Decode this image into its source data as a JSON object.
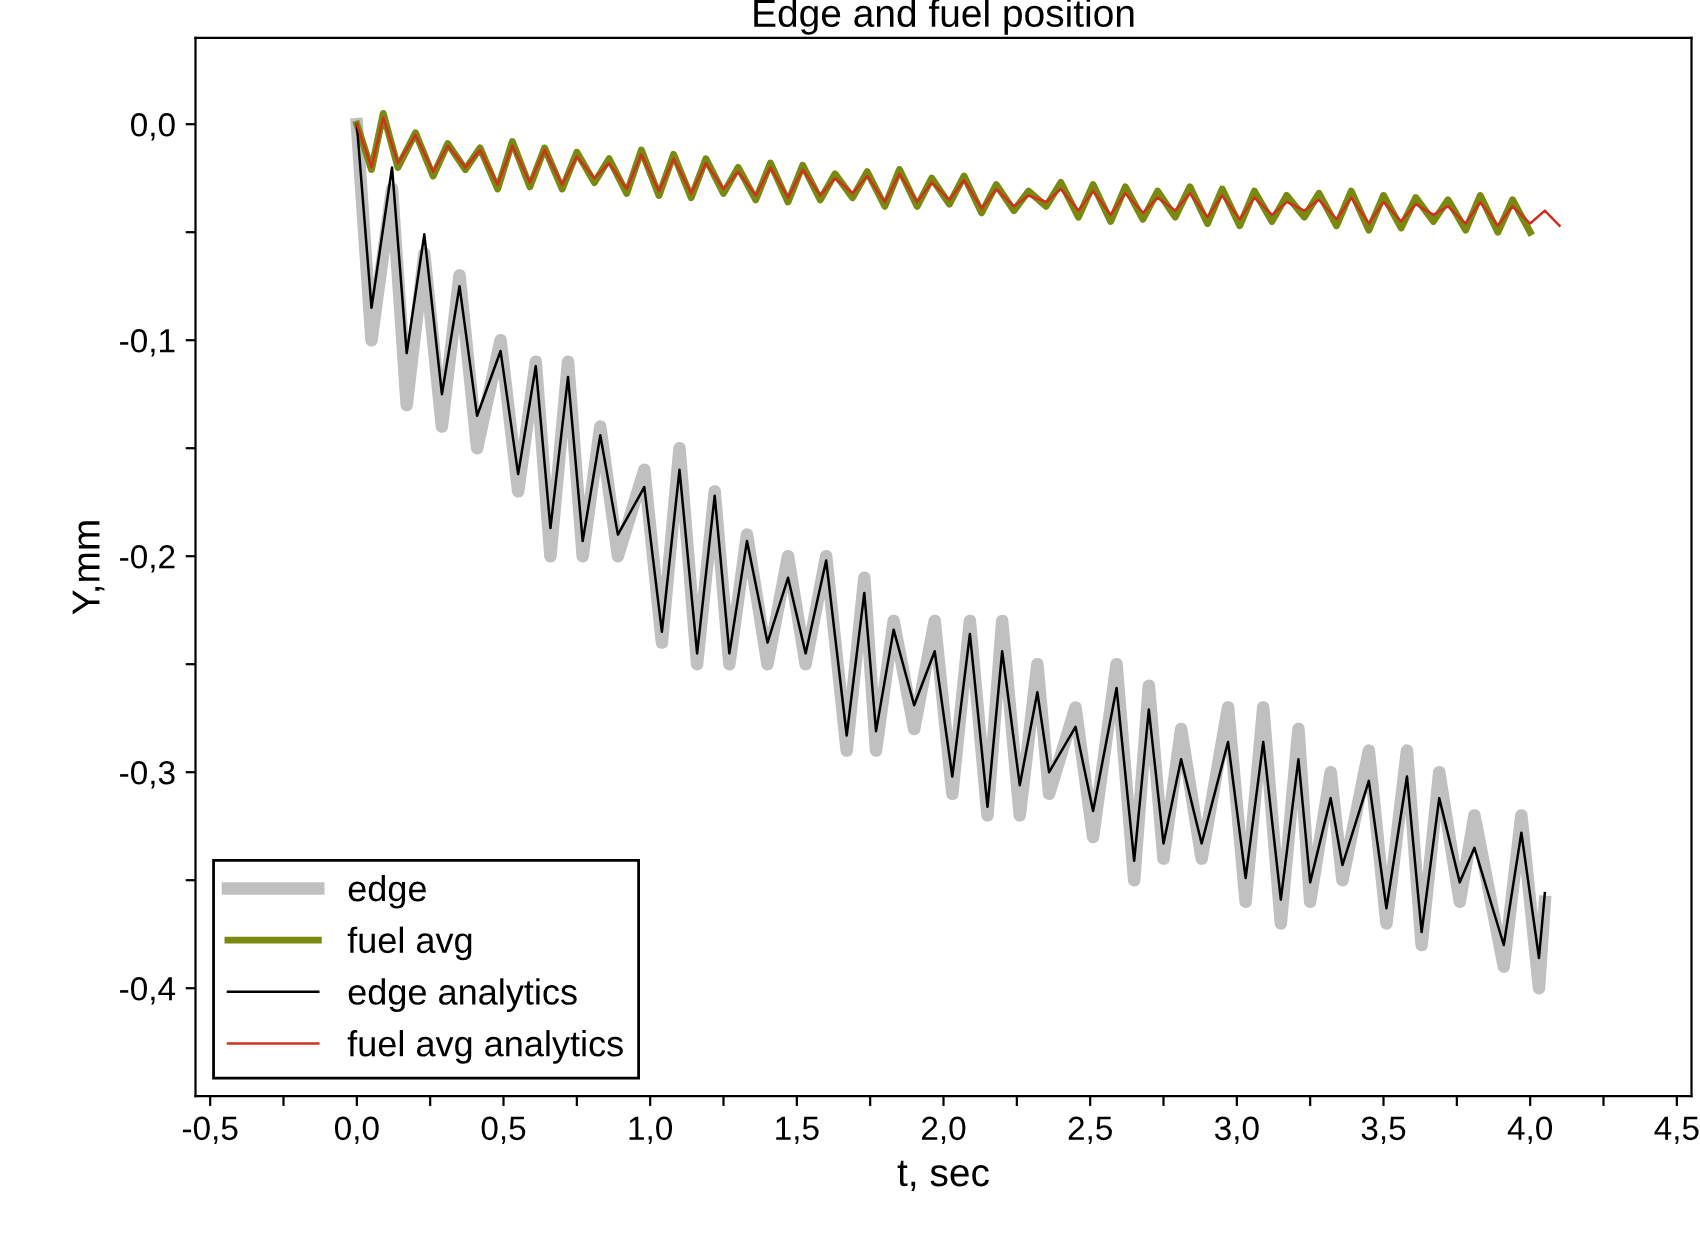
{
  "chart_data": {
    "type": "line",
    "title": "Edge and fuel position",
    "xlabel": "t, sec",
    "ylabel": "Y,mm",
    "xlim": [
      -0.55,
      4.55
    ],
    "ylim": [
      -0.45,
      0.04
    ],
    "xticks": [
      {
        "value": -0.5,
        "label": "-0,5"
      },
      {
        "value": -0.25,
        "label": null
      },
      {
        "value": 0,
        "label": "0,0"
      },
      {
        "value": 0.25,
        "label": null
      },
      {
        "value": 0.5,
        "label": "0,5"
      },
      {
        "value": 0.75,
        "label": null
      },
      {
        "value": 1,
        "label": "1,0"
      },
      {
        "value": 1.25,
        "label": null
      },
      {
        "value": 1.5,
        "label": "1,5"
      },
      {
        "value": 1.75,
        "label": null
      },
      {
        "value": 2,
        "label": "2,0"
      },
      {
        "value": 2.25,
        "label": null
      },
      {
        "value": 2.5,
        "label": "2,5"
      },
      {
        "value": 2.75,
        "label": null
      },
      {
        "value": 3,
        "label": "3,0"
      },
      {
        "value": 3.25,
        "label": null
      },
      {
        "value": 3.5,
        "label": "3,5"
      },
      {
        "value": 3.75,
        "label": null
      },
      {
        "value": 4,
        "label": "4,0"
      },
      {
        "value": 4.25,
        "label": null
      },
      {
        "value": 4.5,
        "label": "4,5"
      }
    ],
    "yticks": [
      {
        "value": 0,
        "label": "0,0"
      },
      {
        "value": -0.05,
        "label": null
      },
      {
        "value": -0.1,
        "label": "-0,1"
      },
      {
        "value": -0.15,
        "label": null
      },
      {
        "value": -0.2,
        "label": "-0,2"
      },
      {
        "value": -0.25,
        "label": null
      },
      {
        "value": -0.3,
        "label": "-0,3"
      },
      {
        "value": -0.35,
        "label": null
      },
      {
        "value": -0.4,
        "label": "-0,4"
      }
    ],
    "grid": false,
    "legend": "bottom left",
    "marker": "none",
    "series": [
      {
        "name": "edge",
        "color": "#c0c0c0",
        "line_style": "solid",
        "x": [
          0,
          0.05,
          0.12,
          0.17,
          0.23,
          0.29,
          0.35,
          0.41,
          0.49,
          0.55,
          0.61,
          0.66,
          0.72,
          0.77,
          0.83,
          0.89,
          0.98,
          1.04,
          1.1,
          1.16,
          1.22,
          1.27,
          1.33,
          1.4,
          1.47,
          1.53,
          1.6,
          1.67,
          1.73,
          1.77,
          1.83,
          1.9,
          1.97,
          2.03,
          2.09,
          2.15,
          2.2,
          2.26,
          2.32,
          2.36,
          2.45,
          2.51,
          2.59,
          2.65,
          2.7,
          2.75,
          2.81,
          2.88,
          2.97,
          3.03,
          3.09,
          3.15,
          3.21,
          3.25,
          3.32,
          3.36,
          3.45,
          3.51,
          3.58,
          3.63,
          3.69,
          3.76,
          3.81,
          3.91,
          3.97,
          4.03,
          4.05
        ],
        "values": [
          0,
          -0.1,
          -0.03,
          -0.13,
          -0.06,
          -0.14,
          -0.07,
          -0.15,
          -0.1,
          -0.17,
          -0.11,
          -0.2,
          -0.11,
          -0.2,
          -0.14,
          -0.2,
          -0.16,
          -0.24,
          -0.15,
          -0.25,
          -0.17,
          -0.25,
          -0.19,
          -0.25,
          -0.2,
          -0.25,
          -0.2,
          -0.29,
          -0.21,
          -0.29,
          -0.23,
          -0.28,
          -0.23,
          -0.31,
          -0.23,
          -0.32,
          -0.23,
          -0.32,
          -0.25,
          -0.31,
          -0.27,
          -0.33,
          -0.25,
          -0.35,
          -0.26,
          -0.34,
          -0.28,
          -0.34,
          -0.27,
          -0.36,
          -0.27,
          -0.37,
          -0.28,
          -0.36,
          -0.3,
          -0.35,
          -0.29,
          -0.37,
          -0.29,
          -0.38,
          -0.3,
          -0.36,
          -0.32,
          -0.39,
          -0.32,
          -0.4,
          -0.36
        ]
      },
      {
        "name": "fuel avg",
        "color": "#7a8a10",
        "line_style": "solid",
        "x": [
          0,
          0.05,
          0.09,
          0.14,
          0.2,
          0.26,
          0.31,
          0.37,
          0.42,
          0.48,
          0.53,
          0.59,
          0.64,
          0.7,
          0.75,
          0.81,
          0.86,
          0.92,
          0.97,
          1.03,
          1.08,
          1.14,
          1.19,
          1.25,
          1.3,
          1.36,
          1.41,
          1.47,
          1.52,
          1.58,
          1.63,
          1.69,
          1.74,
          1.8,
          1.85,
          1.91,
          1.96,
          2.02,
          2.07,
          2.13,
          2.18,
          2.24,
          2.29,
          2.35,
          2.4,
          2.46,
          2.51,
          2.57,
          2.62,
          2.68,
          2.73,
          2.79,
          2.84,
          2.9,
          2.95,
          3.01,
          3.06,
          3.12,
          3.17,
          3.23,
          3.28,
          3.34,
          3.39,
          3.45,
          3.5,
          3.56,
          3.61,
          3.67,
          3.72,
          3.78,
          3.83,
          3.89,
          3.94,
          4.0
        ],
        "values": [
          0,
          -0.021,
          0.005,
          -0.02,
          -0.004,
          -0.024,
          -0.009,
          -0.021,
          -0.011,
          -0.03,
          -0.008,
          -0.029,
          -0.011,
          -0.03,
          -0.013,
          -0.027,
          -0.016,
          -0.032,
          -0.012,
          -0.033,
          -0.014,
          -0.034,
          -0.016,
          -0.032,
          -0.02,
          -0.035,
          -0.018,
          -0.036,
          -0.019,
          -0.035,
          -0.023,
          -0.034,
          -0.022,
          -0.038,
          -0.021,
          -0.038,
          -0.025,
          -0.037,
          -0.024,
          -0.041,
          -0.028,
          -0.04,
          -0.031,
          -0.038,
          -0.027,
          -0.043,
          -0.028,
          -0.045,
          -0.029,
          -0.044,
          -0.031,
          -0.043,
          -0.029,
          -0.046,
          -0.03,
          -0.047,
          -0.031,
          -0.045,
          -0.033,
          -0.043,
          -0.032,
          -0.047,
          -0.031,
          -0.049,
          -0.033,
          -0.048,
          -0.034,
          -0.045,
          -0.035,
          -0.049,
          -0.033,
          -0.05,
          -0.035,
          -0.05
        ]
      },
      {
        "name": "edge analytics",
        "color": "#000000",
        "line_style": "solid",
        "x": [
          0,
          0.05,
          0.12,
          0.17,
          0.23,
          0.29,
          0.35,
          0.41,
          0.49,
          0.55,
          0.61,
          0.66,
          0.72,
          0.77,
          0.83,
          0.89,
          0.98,
          1.04,
          1.1,
          1.16,
          1.22,
          1.27,
          1.33,
          1.4,
          1.47,
          1.53,
          1.6,
          1.67,
          1.73,
          1.77,
          1.83,
          1.9,
          1.97,
          2.03,
          2.09,
          2.15,
          2.2,
          2.26,
          2.32,
          2.36,
          2.45,
          2.51,
          2.59,
          2.65,
          2.7,
          2.75,
          2.81,
          2.88,
          2.97,
          3.03,
          3.09,
          3.15,
          3.21,
          3.25,
          3.32,
          3.36,
          3.45,
          3.51,
          3.58,
          3.63,
          3.69,
          3.76,
          3.81,
          3.91,
          3.97,
          4.03,
          4.05
        ],
        "values": [
          0,
          -0.085,
          -0.02,
          -0.106,
          -0.051,
          -0.125,
          -0.075,
          -0.135,
          -0.105,
          -0.162,
          -0.112,
          -0.187,
          -0.117,
          -0.193,
          -0.144,
          -0.19,
          -0.168,
          -0.235,
          -0.16,
          -0.245,
          -0.172,
          -0.245,
          -0.193,
          -0.24,
          -0.21,
          -0.245,
          -0.202,
          -0.283,
          -0.217,
          -0.281,
          -0.234,
          -0.269,
          -0.244,
          -0.302,
          -0.236,
          -0.316,
          -0.244,
          -0.306,
          -0.263,
          -0.3,
          -0.279,
          -0.318,
          -0.261,
          -0.341,
          -0.271,
          -0.333,
          -0.294,
          -0.333,
          -0.286,
          -0.349,
          -0.286,
          -0.359,
          -0.294,
          -0.351,
          -0.312,
          -0.343,
          -0.304,
          -0.363,
          -0.302,
          -0.374,
          -0.312,
          -0.351,
          -0.335,
          -0.38,
          -0.328,
          -0.386,
          -0.356
        ]
      },
      {
        "name": "fuel avg analytics",
        "color": "#d03020",
        "line_style": "solid",
        "x": [
          0,
          0.05,
          0.09,
          0.14,
          0.2,
          0.26,
          0.31,
          0.37,
          0.42,
          0.48,
          0.53,
          0.59,
          0.64,
          0.7,
          0.75,
          0.81,
          0.86,
          0.92,
          0.97,
          1.03,
          1.08,
          1.14,
          1.19,
          1.25,
          1.3,
          1.36,
          1.41,
          1.47,
          1.52,
          1.58,
          1.63,
          1.69,
          1.74,
          1.8,
          1.85,
          1.91,
          1.96,
          2.02,
          2.07,
          2.13,
          2.18,
          2.24,
          2.29,
          2.35,
          2.4,
          2.46,
          2.51,
          2.57,
          2.62,
          2.68,
          2.73,
          2.79,
          2.84,
          2.9,
          2.95,
          3.01,
          3.06,
          3.12,
          3.17,
          3.23,
          3.28,
          3.34,
          3.39,
          3.45,
          3.5,
          3.56,
          3.61,
          3.67,
          3.72,
          3.78,
          3.83,
          3.89,
          3.94,
          4.0,
          4.05,
          4.1
        ],
        "values": [
          0,
          -0.02,
          0.003,
          -0.018,
          -0.005,
          -0.022,
          -0.01,
          -0.02,
          -0.012,
          -0.028,
          -0.01,
          -0.027,
          -0.012,
          -0.028,
          -0.015,
          -0.025,
          -0.018,
          -0.03,
          -0.014,
          -0.031,
          -0.016,
          -0.032,
          -0.018,
          -0.03,
          -0.022,
          -0.033,
          -0.02,
          -0.034,
          -0.021,
          -0.033,
          -0.025,
          -0.032,
          -0.024,
          -0.036,
          -0.023,
          -0.036,
          -0.027,
          -0.035,
          -0.026,
          -0.039,
          -0.03,
          -0.038,
          -0.033,
          -0.036,
          -0.03,
          -0.04,
          -0.031,
          -0.042,
          -0.032,
          -0.041,
          -0.034,
          -0.04,
          -0.032,
          -0.043,
          -0.033,
          -0.044,
          -0.034,
          -0.042,
          -0.036,
          -0.04,
          -0.035,
          -0.044,
          -0.034,
          -0.046,
          -0.036,
          -0.045,
          -0.037,
          -0.042,
          -0.038,
          -0.046,
          -0.036,
          -0.047,
          -0.038,
          -0.046,
          -0.04,
          -0.047
        ]
      }
    ]
  }
}
